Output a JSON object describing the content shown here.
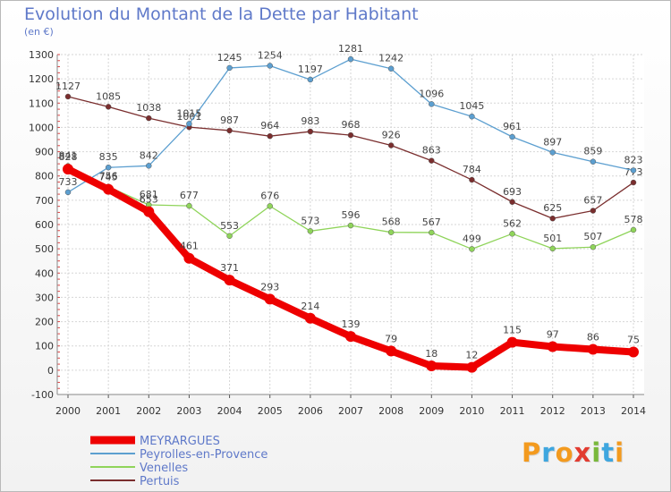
{
  "header": {
    "title": "Evolution du Montant de la Dette par Habitant",
    "subtitle": "(en €)"
  },
  "logo": {
    "text": "Proxiti",
    "colors": [
      "#f39a1e",
      "#3ea6df",
      "#f39a1e",
      "#e23b30",
      "#79b83b",
      "#3ea6df",
      "#f39a1e"
    ]
  },
  "chart_data": {
    "type": "line",
    "title": "Evolution du Montant de la Dette par Habitant",
    "subtitle": "(en €)",
    "xlabel": "",
    "ylabel": "",
    "x": [
      "2000",
      "2001",
      "2002",
      "2003",
      "2004",
      "2005",
      "2006",
      "2007",
      "2008",
      "2009",
      "2010",
      "2011",
      "2012",
      "2013",
      "2014"
    ],
    "ylim": [
      -100,
      1300
    ],
    "y_ticks": [
      -100,
      0,
      100,
      200,
      300,
      400,
      500,
      600,
      700,
      800,
      900,
      1000,
      1100,
      1200,
      1300
    ],
    "grid": true,
    "legend_position": "bottom-left",
    "series": [
      {
        "name": "MEYRARGUES",
        "color": "#ee0000",
        "emphasis": true,
        "values": [
          828,
          745,
          653,
          461,
          371,
          293,
          214,
          139,
          79,
          18,
          12,
          115,
          97,
          86,
          75
        ]
      },
      {
        "name": "Peyrolles-en-Provence",
        "color": "#5c9fd0",
        "emphasis": false,
        "values": [
          733,
          835,
          842,
          1015,
          1245,
          1254,
          1197,
          1281,
          1242,
          1096,
          1045,
          961,
          897,
          859,
          823
        ]
      },
      {
        "name": "Venelles",
        "color": "#8fd45a",
        "emphasis": false,
        "values": [
          841,
          756,
          681,
          677,
          553,
          676,
          573,
          596,
          568,
          567,
          499,
          562,
          501,
          507,
          578
        ]
      },
      {
        "name": "Pertuis",
        "color": "#7a2e2e",
        "emphasis": false,
        "values": [
          1127,
          1085,
          1038,
          1001,
          987,
          964,
          983,
          968,
          926,
          863,
          784,
          693,
          625,
          657,
          773
        ]
      }
    ]
  }
}
